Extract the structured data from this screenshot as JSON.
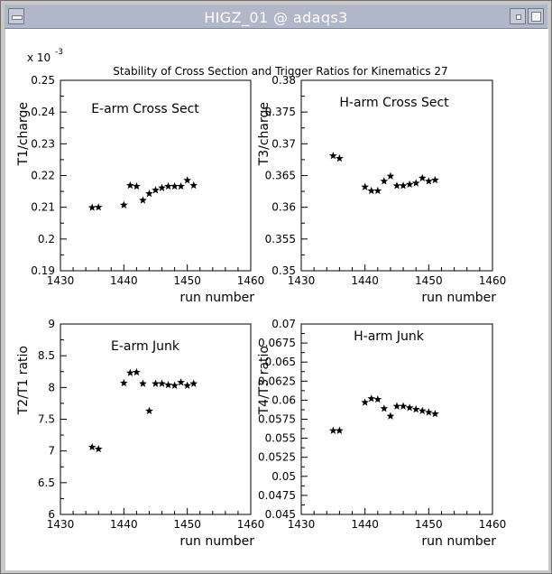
{
  "window": {
    "title": "HIGZ_01 @ adaqs3"
  },
  "figure": {
    "title": "Stability of Cross Section and Trigger Ratios for Kinematics 27",
    "exponent_label": "x 10",
    "exponent_power": "-3"
  },
  "chart_data": [
    {
      "type": "scatter",
      "title": "E-arm Cross Sect",
      "xlabel": "run number",
      "ylabel": "T1/charge",
      "xlim": [
        1430,
        1460
      ],
      "ylim": [
        0.19,
        0.25
      ],
      "xticks": [
        "1430",
        "1440",
        "1450",
        "1460"
      ],
      "yticks": [
        "0.19",
        "0.2",
        "0.21",
        "0.22",
        "0.23",
        "0.24",
        "0.25"
      ],
      "x": [
        1435,
        1436,
        1440,
        1441,
        1442,
        1443,
        1444,
        1445,
        1446,
        1447,
        1448,
        1449,
        1450,
        1451
      ],
      "y": [
        0.2099,
        0.21,
        0.2107,
        0.2169,
        0.2166,
        0.2122,
        0.2143,
        0.2154,
        0.2161,
        0.2166,
        0.2166,
        0.2166,
        0.2185,
        0.2169
      ]
    },
    {
      "type": "scatter",
      "title": "H-arm Cross Sect",
      "xlabel": "run number",
      "ylabel": "T3/charge",
      "xlim": [
        1430,
        1460
      ],
      "ylim": [
        0.35,
        0.38
      ],
      "xticks": [
        "1430",
        "1440",
        "1450",
        "1460"
      ],
      "yticks": [
        "0.35",
        "0.355",
        "0.36",
        "0.365",
        "0.37",
        "0.375",
        "0.38"
      ],
      "x": [
        1435,
        1436,
        1440,
        1441,
        1442,
        1443,
        1444,
        1445,
        1446,
        1447,
        1448,
        1449,
        1450,
        1451
      ],
      "y": [
        0.3681,
        0.3677,
        0.3632,
        0.3626,
        0.3626,
        0.3641,
        0.3649,
        0.3634,
        0.3634,
        0.3636,
        0.3638,
        0.3646,
        0.3641,
        0.3643
      ]
    },
    {
      "type": "scatter",
      "title": "E-arm Junk",
      "xlabel": "run number",
      "ylabel": "T2/T1 ratio",
      "xlim": [
        1430,
        1460
      ],
      "ylim": [
        6,
        9
      ],
      "xticks": [
        "1430",
        "1440",
        "1450",
        "1460"
      ],
      "yticks": [
        "6",
        "6.5",
        "7",
        "7.5",
        "8",
        "8.5",
        "9"
      ],
      "x": [
        1435,
        1436,
        1440,
        1441,
        1442,
        1443,
        1444,
        1445,
        1446,
        1447,
        1448,
        1449,
        1450,
        1451
      ],
      "y": [
        7.06,
        7.03,
        8.07,
        8.23,
        8.24,
        8.06,
        7.63,
        8.06,
        8.06,
        8.04,
        8.03,
        8.08,
        8.03,
        8.06
      ]
    },
    {
      "type": "scatter",
      "title": "H-arm Junk",
      "xlabel": "run number",
      "ylabel": "T4/T3 ratio",
      "xlim": [
        1430,
        1460
      ],
      "ylim": [
        0.045,
        0.07
      ],
      "xticks": [
        "1430",
        "1440",
        "1450",
        "1460"
      ],
      "yticks": [
        "0.045",
        "0.0475",
        "0.05",
        "0.0525",
        "0.055",
        "0.0575",
        "0.06",
        "0.0625",
        "0.065",
        "0.0675",
        "0.07"
      ],
      "x": [
        1435,
        1436,
        1440,
        1441,
        1442,
        1443,
        1444,
        1445,
        1446,
        1447,
        1448,
        1449,
        1450,
        1451
      ],
      "y": [
        0.056,
        0.056,
        0.0597,
        0.0602,
        0.0601,
        0.0589,
        0.0579,
        0.0592,
        0.0592,
        0.059,
        0.0588,
        0.0586,
        0.0584,
        0.0582
      ]
    }
  ]
}
